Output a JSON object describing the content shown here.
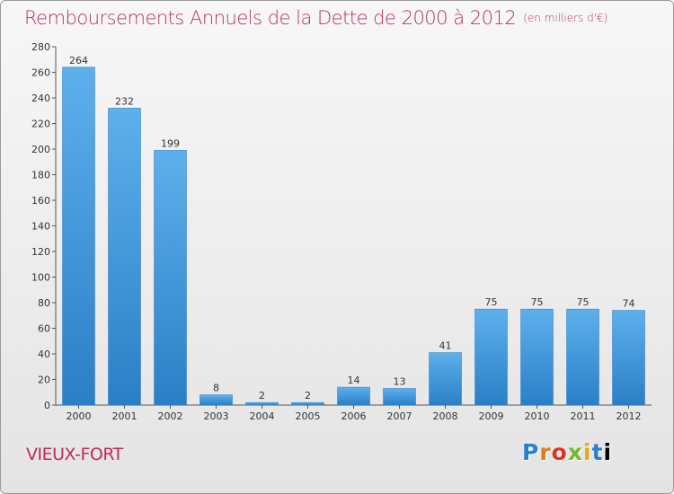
{
  "header": {
    "title": "Remboursements Annuels de la Dette de 2000 à 2012",
    "unit": "(en milliers d'€)"
  },
  "footer": {
    "commune": "VIEUX-FORT",
    "logo_letters": [
      "P",
      "r",
      "o",
      "x",
      "i",
      "t",
      "i"
    ]
  },
  "colors": {
    "title": "#b8306e",
    "bar_top": "#5eb0ec",
    "bar_bottom": "#2a7fc6"
  },
  "chart_data": {
    "type": "bar",
    "title": "Remboursements Annuels de la Dette de 2000 à 2012",
    "subtitle": "(en milliers d'€)",
    "categories": [
      "2000",
      "2001",
      "2002",
      "2003",
      "2004",
      "2005",
      "2006",
      "2007",
      "2008",
      "2009",
      "2010",
      "2011",
      "2012"
    ],
    "values": [
      264,
      232,
      199,
      8,
      2,
      2,
      14,
      13,
      41,
      75,
      75,
      75,
      74
    ],
    "ylim": [
      0,
      280
    ],
    "yticks": [
      0,
      20,
      40,
      60,
      80,
      100,
      120,
      140,
      160,
      180,
      200,
      220,
      240,
      260,
      280
    ],
    "grid": false,
    "data_labels": true
  }
}
